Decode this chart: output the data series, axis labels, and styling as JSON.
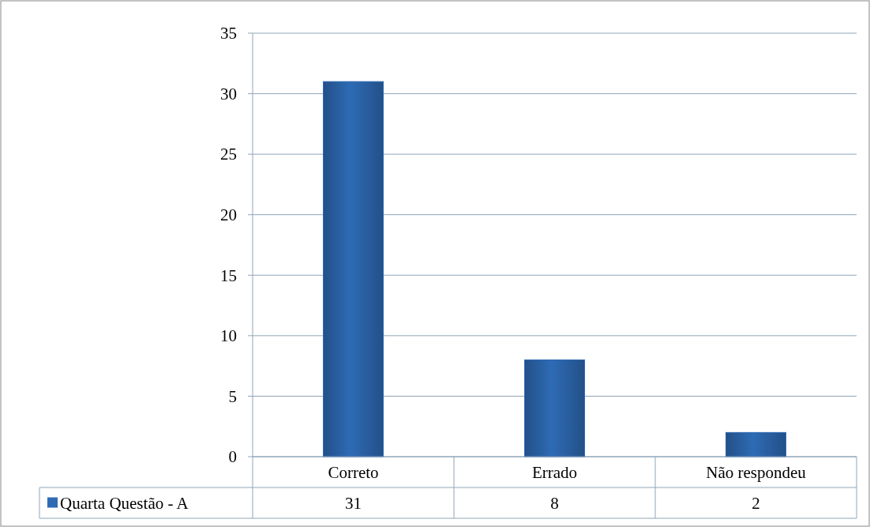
{
  "chart_data": {
    "type": "bar",
    "categories": [
      "Correto",
      "Errado",
      "Não respondeu"
    ],
    "series": [
      {
        "name": "Quarta Questão - A",
        "color": "#2e6bb5",
        "values": [
          31,
          8,
          2
        ]
      }
    ],
    "ylim": [
      0,
      35
    ],
    "yticks": [
      0,
      5,
      10,
      15,
      20,
      25,
      30,
      35
    ],
    "grid": "y",
    "legend": "bottom",
    "data_labels": true
  }
}
